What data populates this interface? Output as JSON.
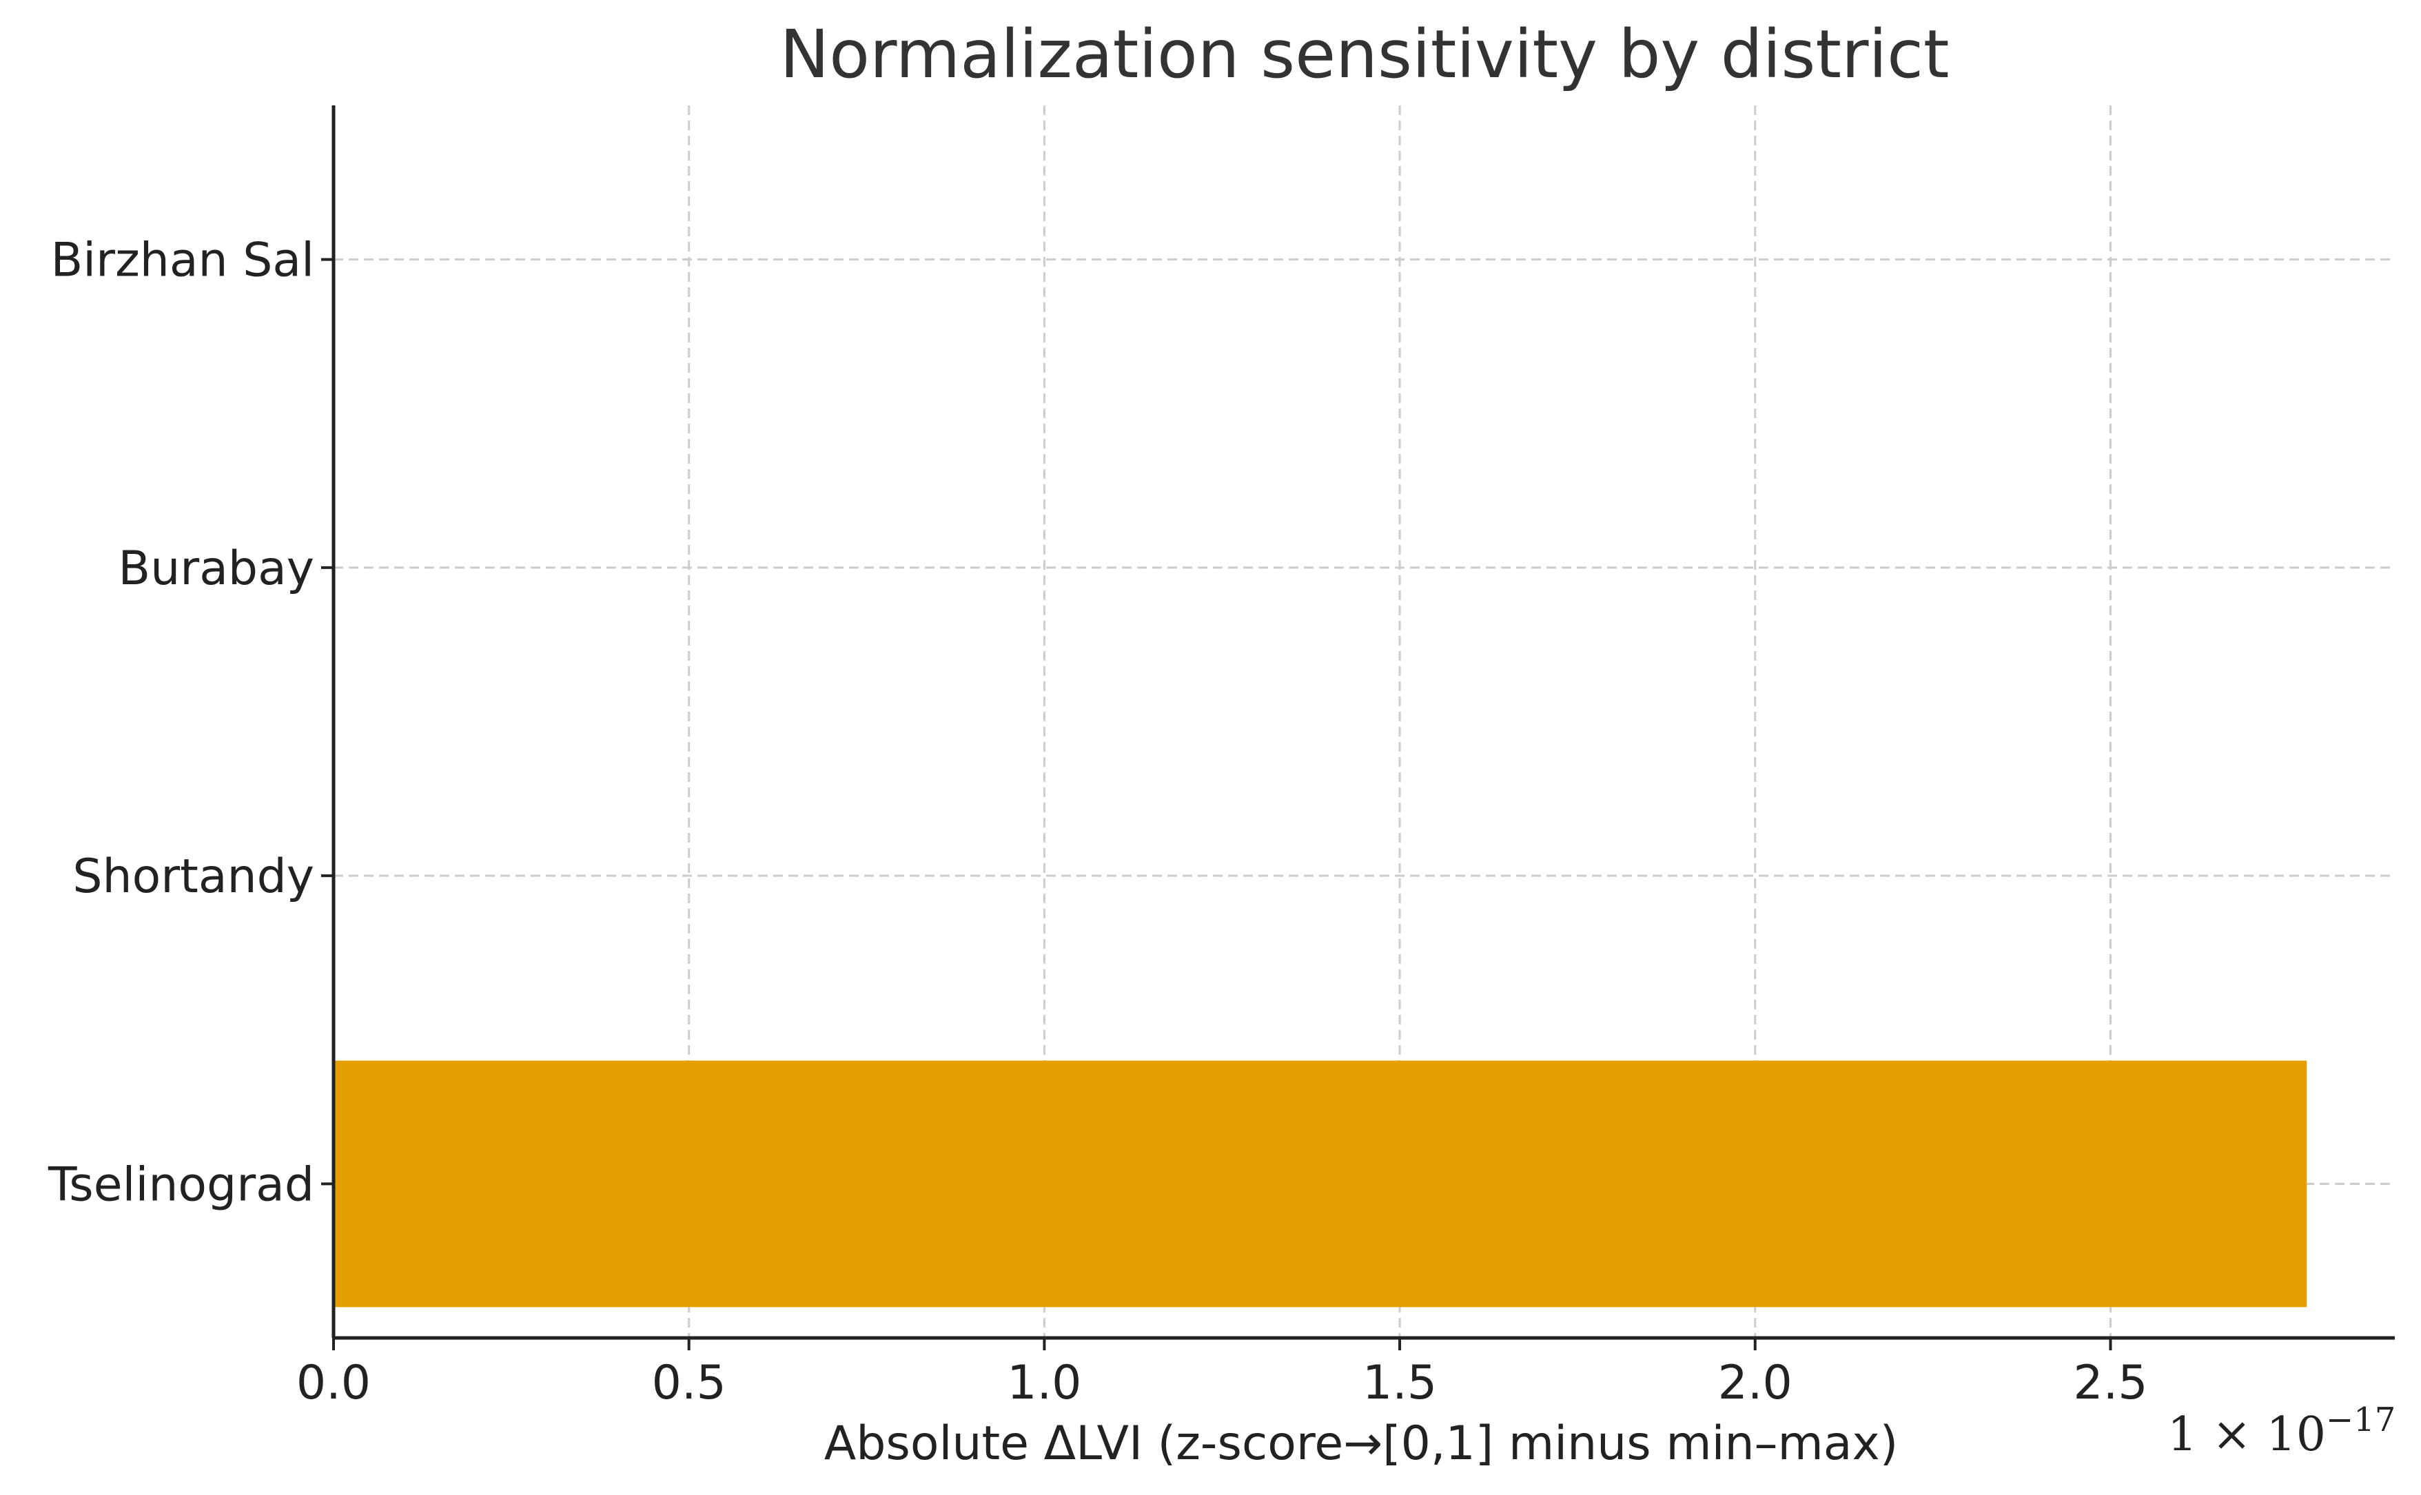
{
  "chart_data": {
    "type": "bar",
    "orientation": "horizontal",
    "title": "Normalization sensitivity by district",
    "categories": [
      "Tselinograd",
      "Shortandy",
      "Burabay",
      "Birzhan Sal"
    ],
    "values": [
      2.776,
      0,
      0,
      0
    ],
    "value_scale_exponent": -17,
    "xlabel": "Absolute ΔLVI (z-score→[0,1] minus min–max)",
    "ylabel": "",
    "xlim": [
      0,
      2.9
    ],
    "x_ticks": [
      0.0,
      0.5,
      1.0,
      1.5,
      2.0,
      2.5
    ],
    "x_tick_labels": [
      "0.0",
      "0.5",
      "1.0",
      "1.5",
      "2.0",
      "2.5"
    ],
    "offset_text": {
      "base": "1 × 10",
      "exponent": "−17"
    },
    "grid": true,
    "bar_color": "#E69F00"
  }
}
